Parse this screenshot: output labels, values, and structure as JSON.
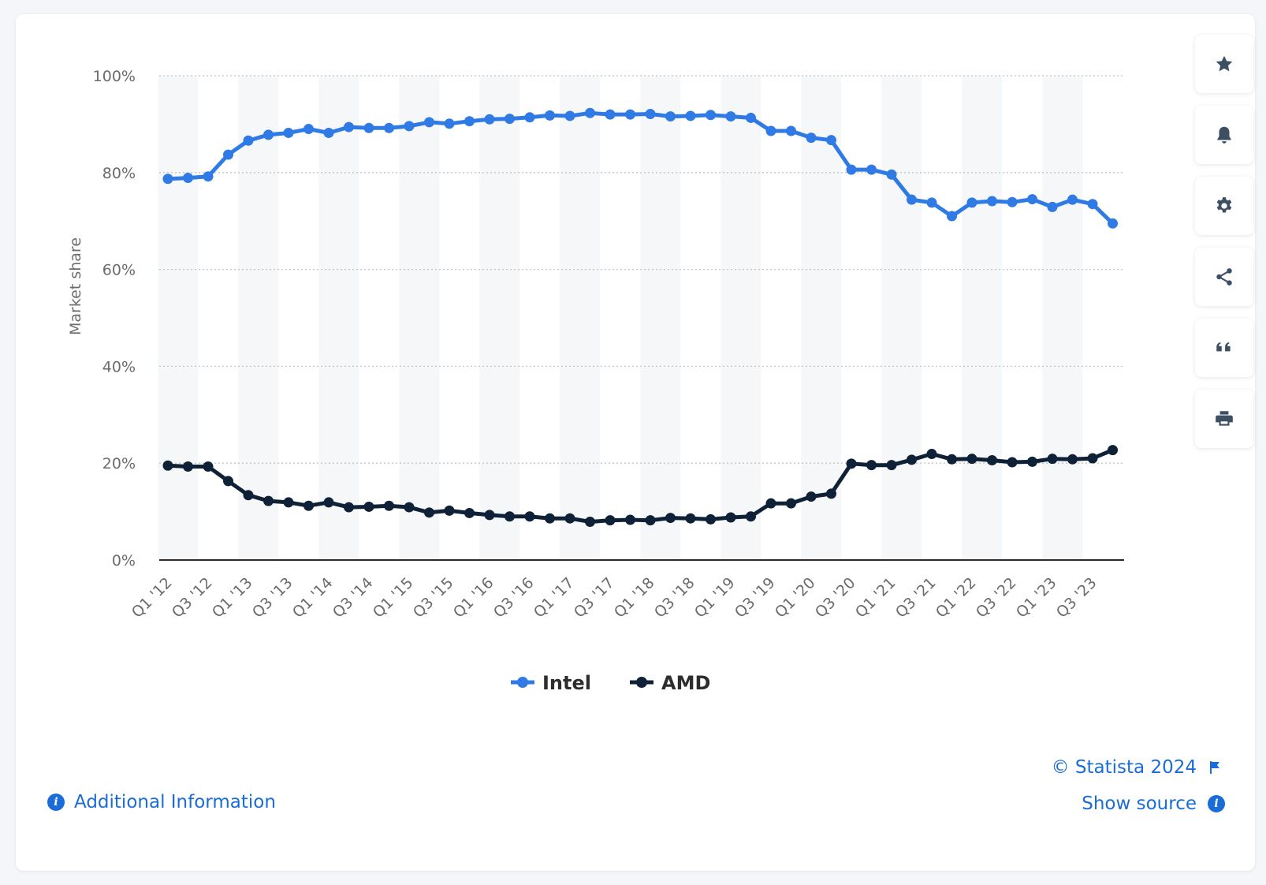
{
  "chart_data": {
    "type": "line",
    "ylabel": "Market share",
    "ylim": [
      0,
      100
    ],
    "yticks": [
      "0%",
      "20%",
      "40%",
      "60%",
      "80%",
      "100%"
    ],
    "grid": true,
    "legend_position": "bottom-center",
    "x_labels": [
      "Q1 '12",
      "Q3 '12",
      "Q1 '13",
      "Q3 '13",
      "Q1 '14",
      "Q3 '14",
      "Q1 '15",
      "Q3 '15",
      "Q1 '16",
      "Q3 '16",
      "Q1 '17",
      "Q3 '17",
      "Q1 '18",
      "Q3 '18",
      "Q1 '19",
      "Q3 '19",
      "Q1 '20",
      "Q3 '20",
      "Q1 '21",
      "Q3 '21",
      "Q1 '22",
      "Q3 '22",
      "Q1 '23",
      "Q3 '23"
    ],
    "x": [
      "Q1 '12",
      "Q2 '12",
      "Q3 '12",
      "Q4 '12",
      "Q1 '13",
      "Q2 '13",
      "Q3 '13",
      "Q4 '13",
      "Q1 '14",
      "Q2 '14",
      "Q3 '14",
      "Q4 '14",
      "Q1 '15",
      "Q2 '15",
      "Q3 '15",
      "Q4 '15",
      "Q1 '16",
      "Q2 '16",
      "Q3 '16",
      "Q4 '16",
      "Q1 '17",
      "Q2 '17",
      "Q3 '17",
      "Q4 '17",
      "Q1 '18",
      "Q2 '18",
      "Q3 '18",
      "Q4 '18",
      "Q1 '19",
      "Q2 '19",
      "Q3 '19",
      "Q4 '19",
      "Q1 '20",
      "Q2 '20",
      "Q3 '20",
      "Q4 '20",
      "Q1 '21",
      "Q2 '21",
      "Q3 '21",
      "Q4 '21",
      "Q1 '22",
      "Q2 '22",
      "Q3 '22",
      "Q4 '22",
      "Q1 '23",
      "Q2 '23",
      "Q3 '23",
      "Q4 '23"
    ],
    "series": [
      {
        "name": "Intel",
        "color": "#2f7ae5",
        "values": [
          78.7,
          78.9,
          79.2,
          83.7,
          86.6,
          87.8,
          88.2,
          89.0,
          88.2,
          89.4,
          89.2,
          89.2,
          89.6,
          90.4,
          90.1,
          90.6,
          91.0,
          91.1,
          91.4,
          91.8,
          91.7,
          92.3,
          92.0,
          92.0,
          92.1,
          91.6,
          91.7,
          91.9,
          91.6,
          91.3,
          88.6,
          88.6,
          87.2,
          86.7,
          80.6,
          80.6,
          79.6,
          74.4,
          73.8,
          71.0,
          73.8,
          74.1,
          73.9,
          74.5,
          72.9,
          74.4,
          73.5,
          69.5
        ]
      },
      {
        "name": "AMD",
        "color": "#0f2137",
        "values": [
          19.5,
          19.3,
          19.3,
          16.3,
          13.4,
          12.2,
          11.9,
          11.2,
          11.9,
          10.9,
          11.0,
          11.2,
          10.9,
          9.8,
          10.2,
          9.7,
          9.3,
          9.0,
          9.0,
          8.6,
          8.6,
          7.9,
          8.2,
          8.3,
          8.2,
          8.7,
          8.6,
          8.4,
          8.8,
          9.0,
          11.7,
          11.7,
          13.1,
          13.7,
          19.9,
          19.6,
          19.6,
          20.7,
          21.9,
          20.8,
          20.9,
          20.6,
          20.2,
          20.3,
          20.9,
          20.8,
          21.0,
          22.7
        ]
      }
    ]
  },
  "toolbar": {
    "buttons": [
      {
        "icon": "star-icon"
      },
      {
        "icon": "bell-icon"
      },
      {
        "icon": "gear-icon"
      },
      {
        "icon": "share-icon"
      },
      {
        "icon": "quote-icon"
      },
      {
        "icon": "print-icon"
      }
    ]
  },
  "footer": {
    "copyright": "© Statista 2024",
    "show_source": "Show source",
    "additional_info": "Additional Information",
    "link_color": "#1a6dd6"
  }
}
